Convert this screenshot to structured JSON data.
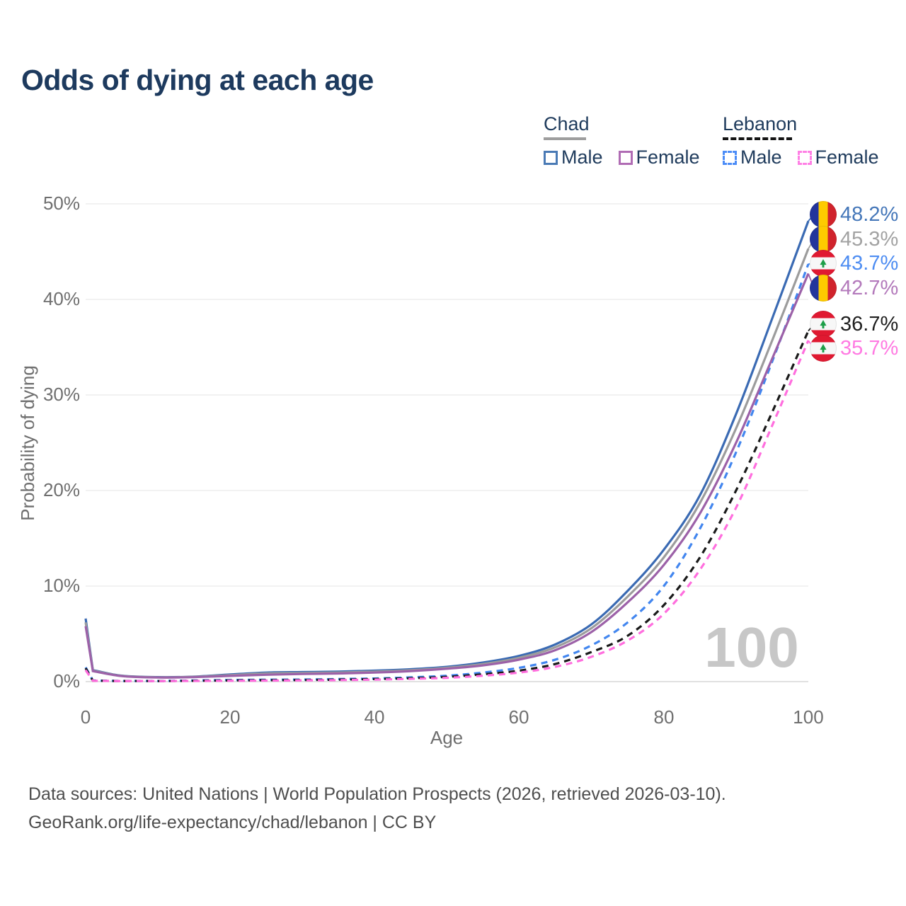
{
  "title": "Odds of dying at each age",
  "watermark": "100",
  "legend": {
    "groups": [
      {
        "country": "Chad",
        "line_style": "solid",
        "underline_color": "#9e9e9e",
        "items": [
          {
            "label": "Male",
            "color": "#4a7ab5"
          },
          {
            "label": "Female",
            "color": "#b06cb4"
          }
        ]
      },
      {
        "country": "Lebanon",
        "line_style": "dashed",
        "underline_color": "#141414",
        "items": [
          {
            "label": "Male",
            "color": "#4b8cf7"
          },
          {
            "label": "Female",
            "color": "#ff80e5"
          }
        ]
      }
    ]
  },
  "axes": {
    "y": {
      "label": "Probability of dying",
      "tick_labels": [
        "0%",
        "10%",
        "20%",
        "30%",
        "40%",
        "50%"
      ],
      "min": 0,
      "max": 50,
      "grid": true
    },
    "x": {
      "label": "Age",
      "tick_labels": [
        "0",
        "20",
        "40",
        "60",
        "80",
        "100"
      ],
      "min": 0,
      "max": 100
    }
  },
  "chart_data": {
    "type": "line",
    "title": "Odds of dying at each age",
    "xlabel": "Age",
    "ylabel": "Probability of dying",
    "xlim": [
      0,
      100
    ],
    "ylim": [
      0,
      50
    ],
    "unit": "%",
    "x": [
      0,
      1,
      5,
      10,
      15,
      20,
      25,
      30,
      35,
      40,
      45,
      50,
      55,
      60,
      65,
      70,
      75,
      80,
      85,
      90,
      95,
      100
    ],
    "series": [
      {
        "name": "Chad Male",
        "country": "Chad",
        "group": "male",
        "dash": "solid",
        "line_color": "#3a6ab3",
        "label_color": "#4577b9",
        "flag": "chad",
        "end_label": "48.2%",
        "end_value": 48.2,
        "values": [
          6.6,
          1.2,
          0.62,
          0.47,
          0.52,
          0.75,
          0.95,
          1.0,
          1.05,
          1.15,
          1.3,
          1.55,
          2.0,
          2.7,
          3.9,
          6.0,
          9.5,
          13.8,
          19.5,
          28.0,
          38.0,
          48.2
        ]
      },
      {
        "name": "Chad Both sexes",
        "country": "Chad",
        "group": "both",
        "dash": "solid",
        "line_color": "#9c9c9c",
        "label_color": "#a2a2a2",
        "flag": "chad",
        "end_label": "45.3%",
        "end_value": 45.3,
        "values": [
          6.2,
          1.15,
          0.6,
          0.45,
          0.5,
          0.68,
          0.85,
          0.9,
          0.95,
          1.05,
          1.2,
          1.45,
          1.85,
          2.5,
          3.6,
          5.6,
          8.9,
          13.0,
          18.7,
          26.5,
          35.7,
          45.3
        ]
      },
      {
        "name": "Lebanon Male",
        "country": "Lebanon",
        "group": "male",
        "dash": "dashed",
        "line_color": "#4286ef",
        "label_color": "#4e8df2",
        "flag": "lebanon",
        "end_label": "43.7%",
        "end_value": 43.7,
        "values": [
          1.5,
          0.12,
          0.07,
          0.07,
          0.12,
          0.17,
          0.2,
          0.22,
          0.27,
          0.33,
          0.45,
          0.62,
          0.95,
          1.45,
          2.3,
          3.8,
          6.2,
          10.0,
          16.0,
          24.0,
          33.5,
          43.7
        ]
      },
      {
        "name": "Chad Female",
        "country": "Chad",
        "group": "female",
        "dash": "solid",
        "line_color": "#9c61a8",
        "label_color": "#b379bb",
        "flag": "chad",
        "end_label": "42.7%",
        "end_value": 42.7,
        "values": [
          5.8,
          1.1,
          0.58,
          0.43,
          0.47,
          0.6,
          0.72,
          0.8,
          0.85,
          0.95,
          1.1,
          1.35,
          1.7,
          2.3,
          3.3,
          5.2,
          8.3,
          12.2,
          17.6,
          25.0,
          33.8,
          42.7
        ]
      },
      {
        "name": "Lebanon Both sexes",
        "country": "Lebanon",
        "group": "both",
        "dash": "dashed",
        "line_color": "#1a1a1a",
        "label_color": "#1f1f1f",
        "flag": "lebanon",
        "end_label": "36.7%",
        "end_value": 36.7,
        "values": [
          1.4,
          0.1,
          0.06,
          0.06,
          0.09,
          0.13,
          0.15,
          0.17,
          0.21,
          0.27,
          0.36,
          0.5,
          0.77,
          1.15,
          1.85,
          3.1,
          4.8,
          8.0,
          13.0,
          20.0,
          28.2,
          36.7
        ]
      },
      {
        "name": "Lebanon Female",
        "country": "Lebanon",
        "group": "female",
        "dash": "dashed",
        "line_color": "#ff6ede",
        "label_color": "#ff7ae2",
        "flag": "lebanon",
        "end_label": "35.7%",
        "end_value": 35.7,
        "values": [
          1.2,
          0.09,
          0.05,
          0.05,
          0.07,
          0.09,
          0.11,
          0.13,
          0.16,
          0.21,
          0.29,
          0.4,
          0.62,
          0.95,
          1.55,
          2.6,
          4.3,
          7.1,
          11.7,
          18.2,
          26.8,
          35.7
        ]
      }
    ],
    "legend_position": "top-right",
    "grid": "horizontal"
  },
  "footer": {
    "line1": "Data sources: United Nations | World Population Prospects (2026, retrieved 2026-03-10).",
    "line2": "GeoRank.org/life-expectancy/chad/lebanon | CC BY"
  }
}
